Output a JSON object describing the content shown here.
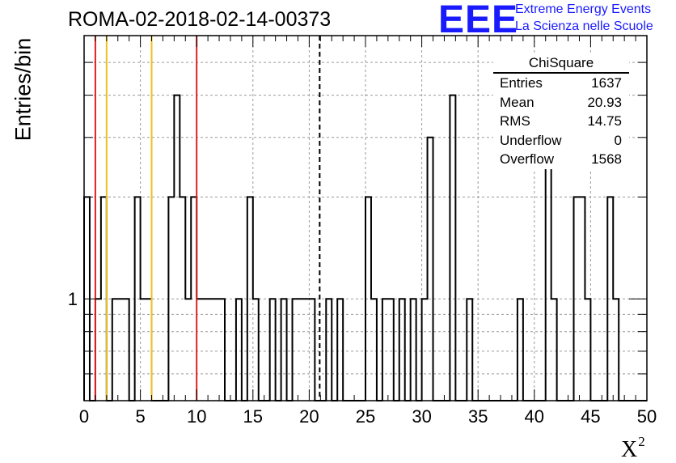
{
  "title": "ROMA-02-2018-02-14-00373",
  "logo": {
    "letters": "EEE",
    "line1": "Extreme Energy Events",
    "line2": "La Scienza nelle Scuole",
    "color": "#1a1aff"
  },
  "stats": {
    "title": "ChiSquare",
    "rows": [
      {
        "key": "Entries",
        "value": "1637"
      },
      {
        "key": "Mean",
        "value": "20.93"
      },
      {
        "key": "RMS",
        "value": "14.75"
      },
      {
        "key": "Underflow",
        "value": "0"
      },
      {
        "key": "Overflow",
        "value": "1568"
      }
    ]
  },
  "chart_data": {
    "type": "bar",
    "histogram": true,
    "xlabel": "X",
    "xlabel_sup": "2",
    "ylabel": "Entries/bin",
    "xlim": [
      0,
      50
    ],
    "ylim": [
      0.5,
      6
    ],
    "log_y": true,
    "bin_width": 0.5,
    "x_ticks": [
      0,
      5,
      10,
      15,
      20,
      25,
      30,
      35,
      40,
      45,
      50
    ],
    "y_tick_labels": [
      {
        "value": 1,
        "label": "1"
      }
    ],
    "grid": true,
    "bins": [
      {
        "x": 0.0,
        "y": 2
      },
      {
        "x": 1.0,
        "y": 1
      },
      {
        "x": 1.5,
        "y": 2
      },
      {
        "x": 2.5,
        "y": 1
      },
      {
        "x": 3.0,
        "y": 1
      },
      {
        "x": 3.5,
        "y": 1
      },
      {
        "x": 4.5,
        "y": 2
      },
      {
        "x": 5.0,
        "y": 1
      },
      {
        "x": 5.5,
        "y": 1
      },
      {
        "x": 7.5,
        "y": 2
      },
      {
        "x": 8.0,
        "y": 4
      },
      {
        "x": 8.5,
        "y": 2
      },
      {
        "x": 9.0,
        "y": 1
      },
      {
        "x": 9.5,
        "y": 2
      },
      {
        "x": 10.0,
        "y": 1
      },
      {
        "x": 10.5,
        "y": 1
      },
      {
        "x": 11.0,
        "y": 1
      },
      {
        "x": 11.5,
        "y": 1
      },
      {
        "x": 12.0,
        "y": 1
      },
      {
        "x": 13.5,
        "y": 1
      },
      {
        "x": 14.5,
        "y": 2
      },
      {
        "x": 15.0,
        "y": 1
      },
      {
        "x": 16.5,
        "y": 1
      },
      {
        "x": 17.5,
        "y": 1
      },
      {
        "x": 18.5,
        "y": 1
      },
      {
        "x": 19.0,
        "y": 1
      },
      {
        "x": 19.5,
        "y": 1
      },
      {
        "x": 20.0,
        "y": 1
      },
      {
        "x": 21.5,
        "y": 1
      },
      {
        "x": 22.5,
        "y": 1
      },
      {
        "x": 25.0,
        "y": 2
      },
      {
        "x": 25.5,
        "y": 1
      },
      {
        "x": 26.5,
        "y": 1
      },
      {
        "x": 27.0,
        "y": 1
      },
      {
        "x": 28.0,
        "y": 1
      },
      {
        "x": 29.0,
        "y": 1
      },
      {
        "x": 30.0,
        "y": 1
      },
      {
        "x": 30.5,
        "y": 3
      },
      {
        "x": 32.5,
        "y": 4
      },
      {
        "x": 34.0,
        "y": 1
      },
      {
        "x": 38.5,
        "y": 1
      },
      {
        "x": 41.0,
        "y": 3
      },
      {
        "x": 41.5,
        "y": 1
      },
      {
        "x": 43.5,
        "y": 2
      },
      {
        "x": 44.0,
        "y": 2
      },
      {
        "x": 44.5,
        "y": 1
      },
      {
        "x": 46.5,
        "y": 2
      },
      {
        "x": 47.0,
        "y": 1
      }
    ],
    "reference_lines": [
      {
        "x": 1,
        "color": "#e02020",
        "style": "solid"
      },
      {
        "x": 2,
        "color": "#f0c020",
        "style": "solid"
      },
      {
        "x": 6,
        "color": "#f0c020",
        "style": "solid"
      },
      {
        "x": 10,
        "color": "#e02020",
        "style": "solid"
      },
      {
        "x": 20.93,
        "color": "#000000",
        "style": "dashed"
      }
    ]
  }
}
